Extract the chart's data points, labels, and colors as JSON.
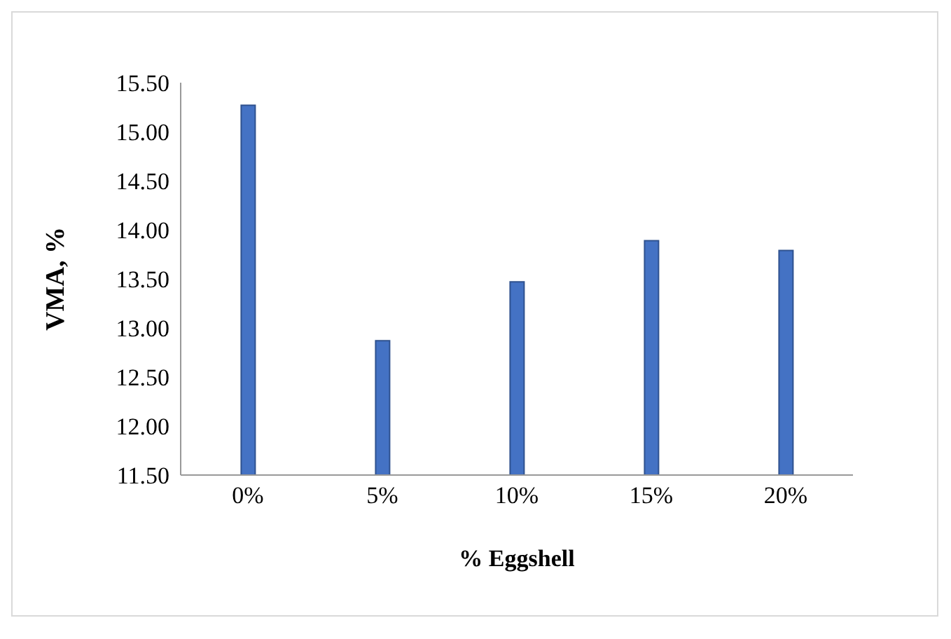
{
  "chart_data": {
    "type": "bar",
    "xlabel": "% Eggshell",
    "ylabel": "VMA, %",
    "categories": [
      "0%",
      "5%",
      "10%",
      "15%",
      "20%"
    ],
    "values": [
      15.27,
      12.87,
      13.47,
      13.89,
      13.79
    ],
    "color": "#4472c4",
    "ylim": [
      11.5,
      15.5
    ],
    "yticks": [
      {
        "value": 11.5,
        "label": "11.50"
      },
      {
        "value": 12,
        "label": "12.00"
      },
      {
        "value": 12.5,
        "label": "12.50"
      },
      {
        "value": 13,
        "label": "13.00"
      },
      {
        "value": 13.5,
        "label": "13.50"
      },
      {
        "value": 14,
        "label": "14.00"
      },
      {
        "value": 14.5,
        "label": "14.50"
      },
      {
        "value": 15,
        "label": "15.00"
      },
      {
        "value": 15.5,
        "label": "15.50"
      }
    ],
    "grid": false,
    "legend": false
  }
}
